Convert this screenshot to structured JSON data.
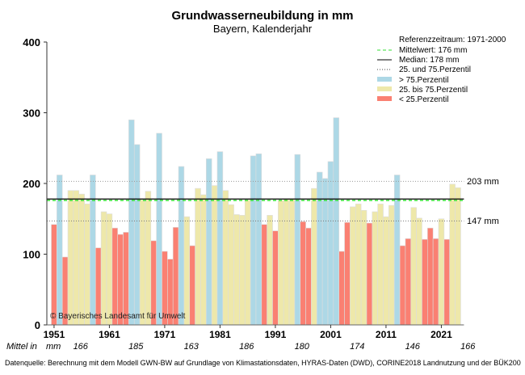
{
  "chart_data": {
    "type": "bar",
    "title": "Grundwasserneubildung in mm",
    "subtitle": "Bayern, Kalenderjahr",
    "ylim": [
      0,
      400
    ],
    "yticks": [
      0,
      100,
      200,
      300,
      400
    ],
    "xtick_labels": [
      "1951",
      "1961",
      "1971",
      "1981",
      "1991",
      "2001",
      "2011",
      "2021"
    ],
    "years": [
      1951,
      1952,
      1953,
      1954,
      1955,
      1956,
      1957,
      1958,
      1959,
      1960,
      1961,
      1962,
      1963,
      1964,
      1965,
      1966,
      1967,
      1968,
      1969,
      1970,
      1971,
      1972,
      1973,
      1974,
      1975,
      1976,
      1977,
      1978,
      1979,
      1980,
      1981,
      1982,
      1983,
      1984,
      1985,
      1986,
      1987,
      1988,
      1989,
      1990,
      1991,
      1992,
      1993,
      1994,
      1995,
      1996,
      1997,
      1998,
      1999,
      2000,
      2001,
      2002,
      2003,
      2004,
      2005,
      2006,
      2007,
      2008,
      2009,
      2010,
      2011,
      2012,
      2013,
      2014,
      2015,
      2016,
      2017,
      2018,
      2019,
      2020,
      2021,
      2022,
      2023,
      2024
    ],
    "values": [
      142,
      212,
      96,
      190,
      190,
      185,
      171,
      212,
      109,
      160,
      157,
      137,
      128,
      131,
      290,
      255,
      177,
      189,
      119,
      271,
      104,
      93,
      138,
      224,
      153,
      112,
      193,
      184,
      235,
      197,
      245,
      190,
      170,
      156,
      155,
      177,
      239,
      242,
      142,
      155,
      133,
      176,
      178,
      178,
      241,
      146,
      137,
      193,
      216,
      207,
      231,
      293,
      104,
      145,
      167,
      171,
      162,
      144,
      160,
      171,
      153,
      169,
      212,
      112,
      122,
      166,
      151,
      121,
      137,
      122,
      150,
      121,
      199,
      194
    ],
    "reference": {
      "period_label": "Referenzzeitraum: 1971-2000",
      "mean_label": "Mittelwert:  176 mm",
      "median_label": "Median:  178 mm",
      "percentile_label": "25. und 75.Perzentil",
      "mean": 176,
      "median": 178,
      "p25": 147,
      "p75": 203,
      "p25_label": "147 mm",
      "p75_label": "203 mm"
    },
    "legend": {
      "placement": "top-right",
      "above_label": " > 75.Perzentil",
      "mid_label": " 25. bis 75.Perzentil",
      "below_label": " < 25.Perzentil"
    },
    "colors": {
      "above": "#add8e6",
      "mid": "#eee8aa",
      "below": "#fa8072",
      "mean": "#33dd33",
      "median": "#000000"
    },
    "decade_means": {
      "label": "Mittel in",
      "unit": "mm",
      "values": [
        "166",
        "185",
        "163",
        "186",
        "180",
        "174",
        "146",
        "166"
      ]
    },
    "copyright": "© Bayerisches Landesamt für Umwelt",
    "source": "Datenquelle: Berechnung mit dem Modell GWN-BW auf Grundlage von Klimastationsdaten, HYRAS-Daten (DWD), CORINE2018 Landnutzung und der BÜK200"
  }
}
